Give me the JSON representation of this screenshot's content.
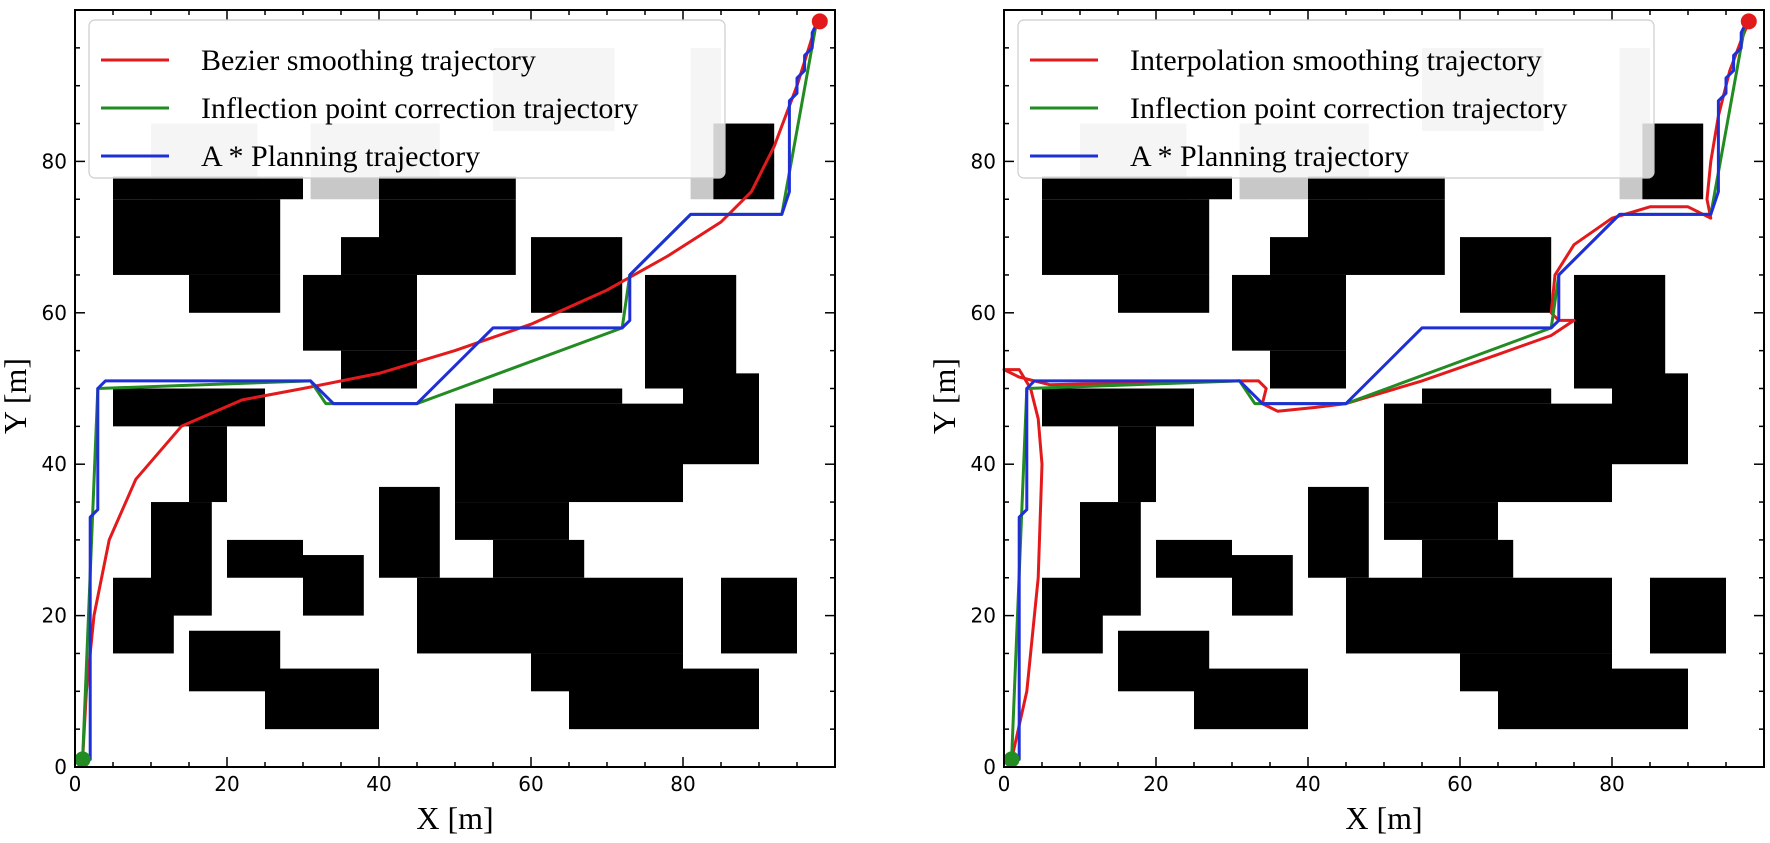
{
  "chart_data": [
    {
      "type": "line",
      "xlabel": "X [m]",
      "ylabel": "Y [m]",
      "xlim": [
        0,
        100
      ],
      "ylim": [
        0,
        100
      ],
      "xticks": [
        0,
        20,
        40,
        60,
        80
      ],
      "yticks": [
        0,
        20,
        40,
        60,
        80
      ],
      "obstacle_colors": {
        "black": "#000000",
        "gray": "#c8c8c8"
      },
      "obstacles": [
        {
          "x0": 10,
          "x1": 24,
          "y0": 75,
          "y1": 85,
          "color": "gray"
        },
        {
          "x0": 31,
          "x1": 48,
          "y0": 75,
          "y1": 85,
          "color": "gray"
        },
        {
          "x0": 55,
          "x1": 71,
          "y0": 84,
          "y1": 95,
          "color": "gray"
        },
        {
          "x0": 81,
          "x1": 85,
          "y0": 75,
          "y1": 95,
          "color": "gray"
        },
        {
          "x0": 5,
          "x1": 30,
          "y0": 75,
          "y1": 78,
          "color": "black"
        },
        {
          "x0": 5,
          "x1": 27,
          "y0": 65,
          "y1": 75,
          "color": "black"
        },
        {
          "x0": 15,
          "x1": 27,
          "y0": 60,
          "y1": 65,
          "color": "black"
        },
        {
          "x0": 40,
          "x1": 58,
          "y0": 75,
          "y1": 78,
          "color": "black"
        },
        {
          "x0": 40,
          "x1": 58,
          "y0": 65,
          "y1": 75,
          "color": "black"
        },
        {
          "x0": 35,
          "x1": 40,
          "y0": 65,
          "y1": 70,
          "color": "black"
        },
        {
          "x0": 30,
          "x1": 45,
          "y0": 55,
          "y1": 65,
          "color": "black"
        },
        {
          "x0": 35,
          "x1": 45,
          "y0": 50,
          "y1": 55,
          "color": "black"
        },
        {
          "x0": 60,
          "x1": 72,
          "y0": 60,
          "y1": 70,
          "color": "black"
        },
        {
          "x0": 84,
          "x1": 92,
          "y0": 75,
          "y1": 85,
          "color": "black"
        },
        {
          "x0": 75,
          "x1": 87,
          "y0": 50,
          "y1": 65,
          "color": "black"
        },
        {
          "x0": 80,
          "x1": 90,
          "y0": 40,
          "y1": 52,
          "color": "black"
        },
        {
          "x0": 5,
          "x1": 25,
          "y0": 45,
          "y1": 50,
          "color": "black"
        },
        {
          "x0": 15,
          "x1": 20,
          "y0": 35,
          "y1": 45,
          "color": "black"
        },
        {
          "x0": 10,
          "x1": 18,
          "y0": 20,
          "y1": 35,
          "color": "black"
        },
        {
          "x0": 5,
          "x1": 13,
          "y0": 15,
          "y1": 25,
          "color": "black"
        },
        {
          "x0": 50,
          "x1": 80,
          "y0": 35,
          "y1": 48,
          "color": "black"
        },
        {
          "x0": 55,
          "x1": 72,
          "y0": 48,
          "y1": 50,
          "color": "black"
        },
        {
          "x0": 50,
          "x1": 65,
          "y0": 30,
          "y1": 35,
          "color": "black"
        },
        {
          "x0": 40,
          "x1": 48,
          "y0": 25,
          "y1": 37,
          "color": "black"
        },
        {
          "x0": 55,
          "x1": 67,
          "y0": 25,
          "y1": 30,
          "color": "black"
        },
        {
          "x0": 45,
          "x1": 80,
          "y0": 15,
          "y1": 25,
          "color": "black"
        },
        {
          "x0": 60,
          "x1": 80,
          "y0": 10,
          "y1": 15,
          "color": "black"
        },
        {
          "x0": 65,
          "x1": 90,
          "y0": 5,
          "y1": 13,
          "color": "black"
        },
        {
          "x0": 20,
          "x1": 30,
          "y0": 25,
          "y1": 30,
          "color": "black"
        },
        {
          "x0": 30,
          "x1": 38,
          "y0": 20,
          "y1": 28,
          "color": "black"
        },
        {
          "x0": 15,
          "x1": 27,
          "y0": 10,
          "y1": 18,
          "color": "black"
        },
        {
          "x0": 25,
          "x1": 40,
          "y0": 5,
          "y1": 13,
          "color": "black"
        },
        {
          "x0": 85,
          "x1": 95,
          "y0": 15,
          "y1": 25,
          "color": "black"
        }
      ],
      "series": [
        {
          "name": "Bezier smoothing trajectory",
          "color": "#e31a1c",
          "points": [
            [
              1,
              1
            ],
            [
              1.5,
              10
            ],
            [
              2.5,
              20
            ],
            [
              4.5,
              30
            ],
            [
              8,
              38
            ],
            [
              14,
              45
            ],
            [
              22,
              48.5
            ],
            [
              30,
              50
            ],
            [
              40,
              52
            ],
            [
              50,
              55
            ],
            [
              60,
              58.5
            ],
            [
              70,
              63
            ],
            [
              78,
              67.5
            ],
            [
              85,
              72
            ],
            [
              89,
              76
            ],
            [
              92,
              82
            ],
            [
              95,
              90
            ],
            [
              97.5,
              98
            ]
          ]
        },
        {
          "name": "Inflection point correction trajectory",
          "color": "#228b22",
          "points": [
            [
              1,
              1
            ],
            [
              3,
              50
            ],
            [
              31,
              51
            ],
            [
              33,
              48
            ],
            [
              45,
              48
            ],
            [
              72,
              58
            ],
            [
              73,
              65
            ],
            [
              81,
              73
            ],
            [
              93,
              73
            ],
            [
              97.5,
              98
            ]
          ]
        },
        {
          "name": "A * Planning trajectory",
          "color": "#1f2fd8",
          "points": [
            [
              1,
              1
            ],
            [
              2,
              1
            ],
            [
              2,
              33
            ],
            [
              3,
              34
            ],
            [
              3,
              50
            ],
            [
              4,
              51
            ],
            [
              31,
              51
            ],
            [
              34,
              48
            ],
            [
              45,
              48
            ],
            [
              55,
              58
            ],
            [
              72,
              58
            ],
            [
              73,
              59
            ],
            [
              73,
              65
            ],
            [
              81,
              73
            ],
            [
              93,
              73
            ],
            [
              94,
              76
            ],
            [
              94,
              88
            ],
            [
              95,
              89
            ],
            [
              95,
              91
            ],
            [
              96,
              92
            ],
            [
              96,
              94
            ],
            [
              97,
              95
            ],
            [
              97,
              97
            ],
            [
              97.5,
              98
            ]
          ]
        }
      ],
      "start_marker": {
        "x": 1,
        "y": 1,
        "color": "#228b22"
      },
      "goal_marker": {
        "x": 98,
        "y": 98.5,
        "color": "#e31a1c"
      },
      "legend": [
        "Bezier smoothing trajectory",
        "Inflection point correction trajectory",
        "A * Planning trajectory"
      ],
      "legend_location": "upper-left"
    },
    {
      "type": "line",
      "xlabel": "X [m]",
      "ylabel": "Y [m]",
      "xlim": [
        0,
        100
      ],
      "ylim": [
        0,
        100
      ],
      "xticks": [
        0,
        20,
        40,
        60,
        80
      ],
      "yticks": [
        0,
        20,
        40,
        60,
        80
      ],
      "obstacle_colors": {
        "black": "#000000",
        "gray": "#c8c8c8"
      },
      "obstacles": [
        {
          "x0": 10,
          "x1": 24,
          "y0": 75,
          "y1": 85,
          "color": "gray"
        },
        {
          "x0": 31,
          "x1": 48,
          "y0": 75,
          "y1": 85,
          "color": "gray"
        },
        {
          "x0": 55,
          "x1": 71,
          "y0": 84,
          "y1": 95,
          "color": "gray"
        },
        {
          "x0": 81,
          "x1": 85,
          "y0": 75,
          "y1": 95,
          "color": "gray"
        },
        {
          "x0": 5,
          "x1": 30,
          "y0": 75,
          "y1": 78,
          "color": "black"
        },
        {
          "x0": 5,
          "x1": 27,
          "y0": 65,
          "y1": 75,
          "color": "black"
        },
        {
          "x0": 15,
          "x1": 27,
          "y0": 60,
          "y1": 65,
          "color": "black"
        },
        {
          "x0": 40,
          "x1": 58,
          "y0": 75,
          "y1": 78,
          "color": "black"
        },
        {
          "x0": 40,
          "x1": 58,
          "y0": 65,
          "y1": 75,
          "color": "black"
        },
        {
          "x0": 35,
          "x1": 40,
          "y0": 65,
          "y1": 70,
          "color": "black"
        },
        {
          "x0": 30,
          "x1": 45,
          "y0": 55,
          "y1": 65,
          "color": "black"
        },
        {
          "x0": 35,
          "x1": 45,
          "y0": 50,
          "y1": 55,
          "color": "black"
        },
        {
          "x0": 60,
          "x1": 72,
          "y0": 60,
          "y1": 70,
          "color": "black"
        },
        {
          "x0": 84,
          "x1": 92,
          "y0": 75,
          "y1": 85,
          "color": "black"
        },
        {
          "x0": 75,
          "x1": 87,
          "y0": 50,
          "y1": 65,
          "color": "black"
        },
        {
          "x0": 80,
          "x1": 90,
          "y0": 40,
          "y1": 52,
          "color": "black"
        },
        {
          "x0": 5,
          "x1": 25,
          "y0": 45,
          "y1": 50,
          "color": "black"
        },
        {
          "x0": 15,
          "x1": 20,
          "y0": 35,
          "y1": 45,
          "color": "black"
        },
        {
          "x0": 10,
          "x1": 18,
          "y0": 20,
          "y1": 35,
          "color": "black"
        },
        {
          "x0": 5,
          "x1": 13,
          "y0": 15,
          "y1": 25,
          "color": "black"
        },
        {
          "x0": 50,
          "x1": 80,
          "y0": 35,
          "y1": 48,
          "color": "black"
        },
        {
          "x0": 55,
          "x1": 72,
          "y0": 48,
          "y1": 50,
          "color": "black"
        },
        {
          "x0": 50,
          "x1": 65,
          "y0": 30,
          "y1": 35,
          "color": "black"
        },
        {
          "x0": 40,
          "x1": 48,
          "y0": 25,
          "y1": 37,
          "color": "black"
        },
        {
          "x0": 55,
          "x1": 67,
          "y0": 25,
          "y1": 30,
          "color": "black"
        },
        {
          "x0": 45,
          "x1": 80,
          "y0": 15,
          "y1": 25,
          "color": "black"
        },
        {
          "x0": 60,
          "x1": 80,
          "y0": 10,
          "y1": 15,
          "color": "black"
        },
        {
          "x0": 65,
          "x1": 90,
          "y0": 5,
          "y1": 13,
          "color": "black"
        },
        {
          "x0": 20,
          "x1": 30,
          "y0": 25,
          "y1": 30,
          "color": "black"
        },
        {
          "x0": 30,
          "x1": 38,
          "y0": 20,
          "y1": 28,
          "color": "black"
        },
        {
          "x0": 15,
          "x1": 27,
          "y0": 10,
          "y1": 18,
          "color": "black"
        },
        {
          "x0": 25,
          "x1": 40,
          "y0": 5,
          "y1": 13,
          "color": "black"
        },
        {
          "x0": 85,
          "x1": 95,
          "y0": 15,
          "y1": 25,
          "color": "black"
        }
      ],
      "series": [
        {
          "name": "Interpolation smoothing trajectory",
          "color": "#e31a1c",
          "points": [
            [
              1,
              1
            ],
            [
              3,
              10
            ],
            [
              4.5,
              25
            ],
            [
              5,
              40
            ],
            [
              4.5,
              46
            ],
            [
              3.5,
              50
            ],
            [
              2,
              52.5
            ],
            [
              0,
              52.5
            ],
            [
              2,
              51.5
            ],
            [
              6,
              50.5
            ],
            [
              20,
              50.8
            ],
            [
              31,
              51
            ],
            [
              33.5,
              51
            ],
            [
              34.5,
              50
            ],
            [
              34,
              48
            ],
            [
              36,
              47
            ],
            [
              41,
              47.5
            ],
            [
              45,
              48
            ],
            [
              55,
              51
            ],
            [
              65,
              54.5
            ],
            [
              72,
              57
            ],
            [
              75,
              59
            ],
            [
              73,
              59
            ],
            [
              72,
              60
            ],
            [
              72.5,
              65
            ],
            [
              75,
              69
            ],
            [
              80,
              72.5
            ],
            [
              85,
              74
            ],
            [
              90,
              74
            ],
            [
              93,
              72.5
            ],
            [
              92.5,
              75
            ],
            [
              93,
              80
            ],
            [
              94,
              86
            ],
            [
              95.5,
              92
            ],
            [
              97,
              96
            ],
            [
              98,
              98.5
            ]
          ]
        },
        {
          "name": "Inflection point correction trajectory",
          "color": "#228b22",
          "points": [
            [
              1,
              1
            ],
            [
              3,
              50
            ],
            [
              31,
              51
            ],
            [
              33,
              48
            ],
            [
              45,
              48
            ],
            [
              72,
              58
            ],
            [
              73,
              65
            ],
            [
              81,
              73
            ],
            [
              93,
              73
            ],
            [
              97.5,
              98
            ]
          ]
        },
        {
          "name": "A * Planning trajectory",
          "color": "#1f2fd8",
          "points": [
            [
              1,
              1
            ],
            [
              2,
              1
            ],
            [
              2,
              33
            ],
            [
              3,
              34
            ],
            [
              3,
              50
            ],
            [
              4,
              51
            ],
            [
              31,
              51
            ],
            [
              34,
              48
            ],
            [
              45,
              48
            ],
            [
              55,
              58
            ],
            [
              72,
              58
            ],
            [
              73,
              59
            ],
            [
              73,
              65
            ],
            [
              81,
              73
            ],
            [
              93,
              73
            ],
            [
              94,
              76
            ],
            [
              94,
              88
            ],
            [
              95,
              89
            ],
            [
              95,
              91
            ],
            [
              96,
              92
            ],
            [
              96,
              94
            ],
            [
              97,
              95
            ],
            [
              97,
              97
            ],
            [
              97.5,
              98
            ]
          ]
        }
      ],
      "start_marker": {
        "x": 1,
        "y": 1,
        "color": "#228b22"
      },
      "goal_marker": {
        "x": 98,
        "y": 98.5,
        "color": "#e31a1c"
      },
      "legend": [
        "Interpolation smoothing trajectory",
        "Inflection point correction trajectory",
        "A * Planning trajectory"
      ],
      "legend_location": "upper-left"
    }
  ]
}
